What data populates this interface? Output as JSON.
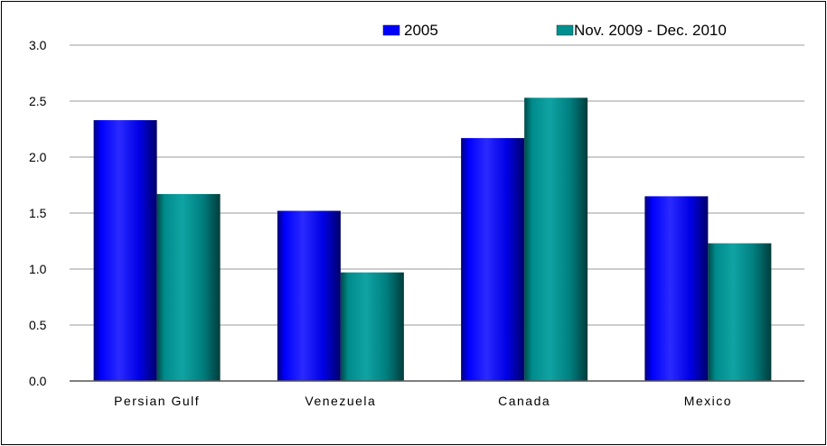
{
  "colors": {
    "2005": "#0000ff",
    "Nov. 2009 - Dec. 2010": "#008f8f",
    "grid": "#9a9a9a",
    "axis": "#555555"
  },
  "chart_data": {
    "type": "bar",
    "categories": [
      "Persian Gulf",
      "Venezuela",
      "Canada",
      "Mexico"
    ],
    "series": [
      {
        "name": "2005",
        "values": [
          2.33,
          1.52,
          2.17,
          1.65
        ]
      },
      {
        "name": "Nov. 2009 - Dec. 2010",
        "values": [
          1.67,
          0.97,
          2.53,
          1.23
        ]
      }
    ],
    "ylim": [
      0,
      3.0
    ],
    "yticks": [
      "0.0",
      "0.5",
      "1.0",
      "1.5",
      "2.0",
      "2.5",
      "3.0"
    ],
    "grid": true,
    "legend": "top-right"
  }
}
